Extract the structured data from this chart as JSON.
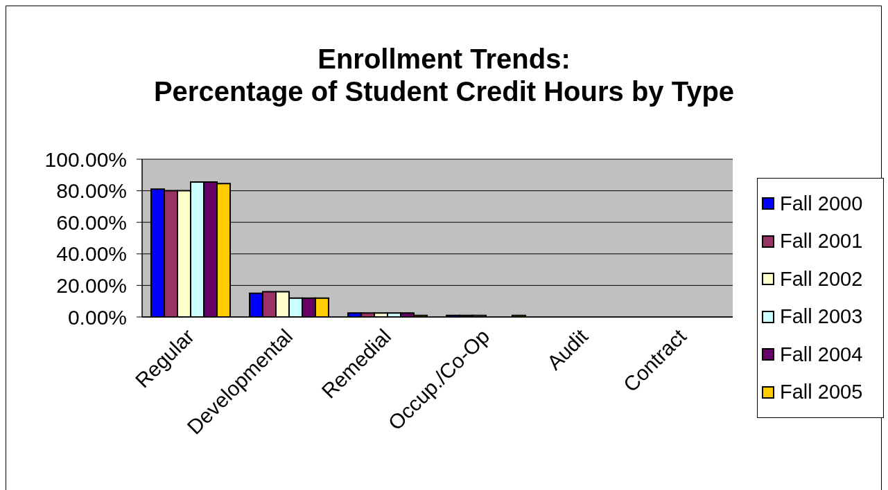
{
  "chart_data": {
    "type": "bar",
    "title": "Enrollment Trends:\nPercentage of Student Credit Hours by Type",
    "categories": [
      "Regular",
      "Developmental",
      "Remedial",
      "Occup./Co-Op",
      "Audit",
      "Contract"
    ],
    "series": [
      {
        "name": "Fall 2000",
        "color": "#0000ff",
        "values": [
          81,
          15,
          2.5,
          1,
          0,
          0
        ]
      },
      {
        "name": "Fall 2001",
        "color": "#993366",
        "values": [
          80,
          16,
          2.5,
          1,
          0,
          0
        ]
      },
      {
        "name": "Fall 2002",
        "color": "#ffffcc",
        "values": [
          80,
          16,
          2.5,
          1,
          0,
          0
        ]
      },
      {
        "name": "Fall 2003",
        "color": "#ccffff",
        "values": [
          85.5,
          12,
          2.5,
          0,
          0,
          0
        ]
      },
      {
        "name": "Fall 2004",
        "color": "#660066",
        "values": [
          85.5,
          12,
          2.5,
          0,
          0,
          0
        ]
      },
      {
        "name": "Fall 2005",
        "color": "#ffcc00",
        "values": [
          84.5,
          12,
          1,
          1,
          0,
          0
        ]
      }
    ],
    "ylim": [
      0,
      100
    ],
    "yticks": [
      {
        "value": 0,
        "label": "0.00%"
      },
      {
        "value": 20,
        "label": "20.00%"
      },
      {
        "value": 40,
        "label": "40.00%"
      },
      {
        "value": 60,
        "label": "60.00%"
      },
      {
        "value": 80,
        "label": "80.00%"
      },
      {
        "value": 100,
        "label": "100.00%"
      }
    ],
    "grid": "y",
    "legend": "right"
  }
}
